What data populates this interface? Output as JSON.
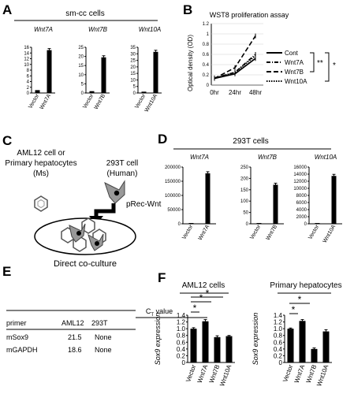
{
  "panels": {
    "A": "A",
    "B": "B",
    "C": "C",
    "D": "D",
    "E": "E",
    "F": "F"
  },
  "panelA": {
    "title": "sm-cc cells",
    "charts": [
      {
        "gene": "Wnt7A",
        "ticks": [
          "0",
          "2",
          "4",
          "6",
          "8",
          "10",
          "12",
          "14",
          "16"
        ],
        "ymax": 16,
        "categories": [
          "Vector",
          "Wnt7A"
        ],
        "values": [
          1,
          15
        ]
      },
      {
        "gene": "Wnt7B",
        "ticks": [
          "0",
          "5",
          "10",
          "15",
          "20",
          "25"
        ],
        "ymax": 25,
        "categories": [
          "Vector",
          "Wnt7B"
        ],
        "values": [
          1,
          19.5
        ]
      },
      {
        "gene": "Wnt10A",
        "ticks": [
          "0",
          "5",
          "10",
          "15",
          "20",
          "25",
          "30",
          "35"
        ],
        "ymax": 35,
        "categories": [
          "Vector",
          "Wnt10A"
        ],
        "values": [
          1,
          31.5
        ]
      }
    ]
  },
  "panelB": {
    "title": "WST8 proliferation assay",
    "ylabel": "Optical density (OD)",
    "yticks": [
      "0",
      "0.2",
      "0.4",
      "0.6",
      "0.8",
      "1",
      "1.2"
    ],
    "xticks": [
      "0hr",
      "24hr",
      "48hr"
    ],
    "legend": [
      "Cont",
      "Wnt7A",
      "Wnt7B",
      "Wnt10A"
    ],
    "sig_inner": "**",
    "sig_outer": "*"
  },
  "panelC": {
    "cell1_line1": "AML12 cell or",
    "cell1_line2": "Primary hepatocytes",
    "cell1_line3": "(Ms)",
    "cell2_line1": "293T cell",
    "cell2_line2": "(Human)",
    "vector": "pRec-Wnt",
    "caption": "Direct co-culture"
  },
  "panelD": {
    "title": "293T cells",
    "charts": [
      {
        "gene": "Wnt7A",
        "ticks": [
          "0",
          "50000",
          "100000",
          "150000",
          "200000"
        ],
        "ymax": 200000,
        "categories": [
          "Vector",
          "Wnt7A"
        ],
        "values": [
          100,
          178000
        ]
      },
      {
        "gene": "Wnt7B",
        "ticks": [
          "0",
          "50",
          "100",
          "150",
          "200",
          "250"
        ],
        "ymax": 250,
        "categories": [
          "Vector",
          "Wnt7B"
        ],
        "values": [
          1,
          172
        ]
      },
      {
        "gene": "Wnt10A",
        "ticks": [
          "0",
          "2000",
          "4000",
          "6000",
          "8000",
          "10000",
          "12000",
          "14000",
          "16000"
        ],
        "ymax": 16000,
        "categories": [
          "Vector",
          "Wnt10A"
        ],
        "values": [
          50,
          13500
        ]
      }
    ]
  },
  "panelE": {
    "header": "C",
    "header_sub": "T",
    "header_rest": " value",
    "columns": [
      "primer",
      "AML12",
      "293T"
    ],
    "rows": [
      [
        "mSox9",
        "21.5",
        "None"
      ],
      [
        "mGAPDH",
        "18.6",
        "None"
      ]
    ]
  },
  "panelF": {
    "chart_data": [
      {
        "type": "bar",
        "title": "AML12 cells",
        "ylabel": "Sox9 expression",
        "categories": [
          "Vector",
          "Wnt7A",
          "Wnt7B",
          "Wnt10A"
        ],
        "values": [
          1.0,
          1.22,
          0.75,
          0.78
        ],
        "yticks": [
          "0",
          "0.2",
          "0.4",
          "0.6",
          "0.8",
          "1.0",
          "1.2",
          "1.4"
        ],
        "ylim": [
          0,
          1.4
        ]
      },
      {
        "type": "bar",
        "title": "Primary hepatocytes",
        "ylabel": "Sox9 expression",
        "categories": [
          "Vector",
          "Wnt7A",
          "Wnt7B",
          "Wnt10A"
        ],
        "values": [
          1.0,
          1.23,
          0.4,
          0.92
        ],
        "yticks": [
          "0",
          "0.2",
          "0.4",
          "0.6",
          "0.8",
          "1.0",
          "1.2",
          "1.4"
        ],
        "ylim": [
          0,
          1.4
        ]
      }
    ],
    "star": "*"
  }
}
